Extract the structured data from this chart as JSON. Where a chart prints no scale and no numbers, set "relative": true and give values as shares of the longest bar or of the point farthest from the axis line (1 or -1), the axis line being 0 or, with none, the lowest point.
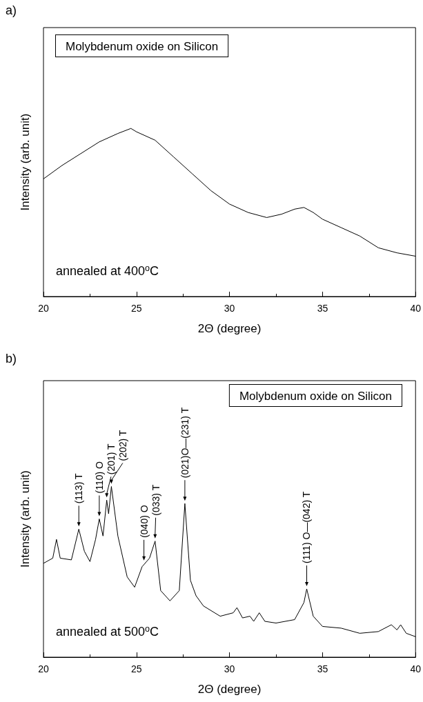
{
  "chart_data": [
    {
      "type": "line",
      "title": "a)",
      "xlabel": "2Θ (degree)",
      "ylabel": "Intensity (arb. unit)",
      "relative": true,
      "xlim": [
        20,
        40
      ],
      "xticks": [
        20,
        25,
        30,
        35,
        40
      ],
      "annotations": [
        "Molybdenum oxide on Silicon",
        "annealed at 400$^{o}$C"
      ],
      "x": [
        20,
        21,
        22,
        23,
        24,
        24.7,
        25,
        26,
        27,
        28,
        29,
        30,
        31,
        32,
        32.8,
        33.5,
        34,
        34.5,
        35,
        36,
        37,
        38,
        39,
        40
      ],
      "series": [
        {
          "color": "#000000",
          "values": [
            0.7,
            0.78,
            0.85,
            0.92,
            0.97,
            1.0,
            0.98,
            0.93,
            0.83,
            0.73,
            0.63,
            0.55,
            0.5,
            0.47,
            0.49,
            0.52,
            0.53,
            0.5,
            0.46,
            0.41,
            0.36,
            0.29,
            0.26,
            0.24
          ]
        }
      ]
    },
    {
      "type": "line",
      "title": "b)",
      "xlabel": "2Θ (degree)",
      "ylabel": "Intensity (arb. unit)",
      "relative": true,
      "xlim": [
        20,
        40
      ],
      "xticks": [
        20,
        25,
        30,
        35,
        40
      ],
      "annotations": [
        "Molybdenum oxide on Silicon",
        "annealed at 500$^{o}$C",
        {
          "text": "(113) T",
          "x": 21.9,
          "y": 0.75
        },
        {
          "text": "(110) O",
          "x": 23.0,
          "y": 0.81
        },
        {
          "text": "(201) T",
          "x": 23.4,
          "y": 0.92
        },
        {
          "text": "(202) T",
          "x": 23.65,
          "y": 1.0
        },
        {
          "text": "(040) O",
          "x": 25.4,
          "y": 0.55
        },
        {
          "text": "(033) T",
          "x": 26.0,
          "y": 0.68
        },
        {
          "text": "(021)O—(231) T",
          "x": 27.6,
          "y": 0.9
        },
        {
          "text": "(111) O—(042) T",
          "x": 34.15,
          "y": 0.4
        }
      ],
      "x": [
        20,
        20.5,
        20.7,
        20.9,
        21.5,
        21.9,
        22.2,
        22.5,
        22.8,
        23.0,
        23.2,
        23.4,
        23.5,
        23.65,
        24.0,
        24.5,
        24.9,
        25.3,
        25.7,
        26.0,
        26.3,
        26.8,
        27.3,
        27.6,
        27.9,
        28.2,
        28.6,
        29.5,
        30.2,
        30.4,
        30.7,
        31.1,
        31.3,
        31.6,
        31.9,
        32.5,
        33.5,
        34.0,
        34.15,
        34.5,
        35,
        36,
        37,
        38,
        38.7,
        39.0,
        39.2,
        39.5,
        40
      ],
      "series": [
        {
          "color": "#000000",
          "values": [
            0.55,
            0.58,
            0.69,
            0.58,
            0.57,
            0.75,
            0.62,
            0.56,
            0.69,
            0.81,
            0.71,
            0.92,
            0.84,
            1.0,
            0.71,
            0.47,
            0.41,
            0.53,
            0.58,
            0.68,
            0.39,
            0.33,
            0.39,
            0.9,
            0.45,
            0.36,
            0.3,
            0.24,
            0.26,
            0.29,
            0.23,
            0.24,
            0.21,
            0.26,
            0.21,
            0.2,
            0.22,
            0.32,
            0.4,
            0.24,
            0.18,
            0.17,
            0.14,
            0.15,
            0.19,
            0.16,
            0.19,
            0.14,
            0.12
          ]
        }
      ]
    }
  ]
}
